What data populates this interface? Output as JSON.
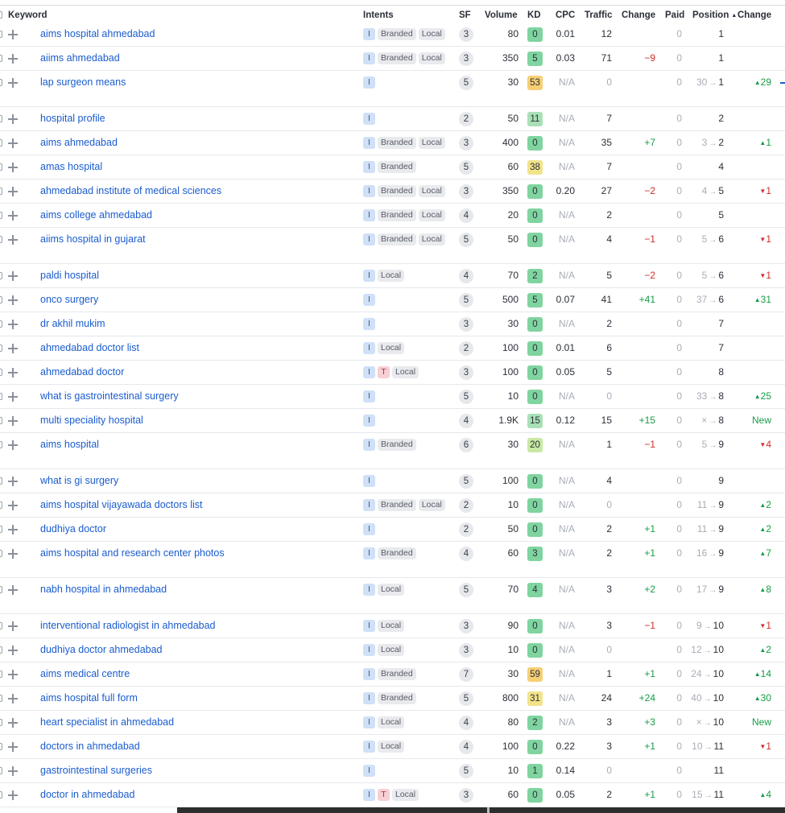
{
  "header": {
    "keyword": "Keyword",
    "intents": "Intents",
    "sf": "SF",
    "volume": "Volume",
    "kd": "KD",
    "cpc": "CPC",
    "traffic": "Traffic",
    "change": "Change",
    "paid": "Paid",
    "position": "Position",
    "position_sort_icon": "sort-ascending-icon",
    "change2": "Change"
  },
  "kd_colors": {
    "green": "#7fd49f",
    "light_green": "#a9e0b6",
    "lime": "#c9e8a4",
    "yellow": "#f2e38a",
    "orange": "#f6cf74"
  },
  "rows": [
    {
      "keyword": "aims hospital ahmedabad",
      "intents": [
        "I"
      ],
      "tags": [
        "Branded",
        "Local"
      ],
      "sf": "3",
      "volume": "80",
      "kd": "0",
      "kd_color": "green",
      "cpc": "0.01",
      "traffic": "12",
      "change": "",
      "paid": "0",
      "pos_prev": "",
      "pos": "1",
      "pos_change": "",
      "pos_dir": ""
    },
    {
      "keyword": "aiims ahmedabad",
      "intents": [
        "I"
      ],
      "tags": [
        "Branded",
        "Local"
      ],
      "sf": "3",
      "volume": "350",
      "kd": "5",
      "kd_color": "green",
      "cpc": "0.03",
      "traffic": "71",
      "change": "−9",
      "paid": "0",
      "pos_prev": "",
      "pos": "1",
      "pos_change": "",
      "pos_dir": ""
    },
    {
      "keyword": "lap surgeon means",
      "intents": [
        "I"
      ],
      "tags": [],
      "sf": "5",
      "volume": "30",
      "kd": "53",
      "kd_color": "orange",
      "cpc": "N/A",
      "traffic": "0",
      "change": "",
      "paid": "0",
      "pos_prev": "30",
      "pos": "1",
      "pos_change": "29",
      "pos_dir": "up"
    },
    {
      "keyword": "hospital profile",
      "intents": [
        "I"
      ],
      "tags": [],
      "sf": "2",
      "volume": "50",
      "kd": "11",
      "kd_color": "light_green",
      "cpc": "N/A",
      "traffic": "7",
      "change": "",
      "paid": "0",
      "pos_prev": "",
      "pos": "2",
      "pos_change": "",
      "pos_dir": ""
    },
    {
      "keyword": "aims ahmedabad",
      "intents": [
        "I"
      ],
      "tags": [
        "Branded",
        "Local"
      ],
      "sf": "3",
      "volume": "400",
      "kd": "0",
      "kd_color": "green",
      "cpc": "N/A",
      "traffic": "35",
      "change": "+7",
      "paid": "0",
      "pos_prev": "3",
      "pos": "2",
      "pos_change": "1",
      "pos_dir": "up"
    },
    {
      "keyword": "amas hospital",
      "intents": [
        "I"
      ],
      "tags": [
        "Branded"
      ],
      "sf": "5",
      "volume": "60",
      "kd": "38",
      "kd_color": "yellow",
      "cpc": "N/A",
      "traffic": "7",
      "change": "",
      "paid": "0",
      "pos_prev": "",
      "pos": "4",
      "pos_change": "",
      "pos_dir": ""
    },
    {
      "keyword": "ahmedabad institute of medical sciences",
      "intents": [
        "I"
      ],
      "tags": [
        "Branded",
        "Local"
      ],
      "sf": "3",
      "volume": "350",
      "kd": "0",
      "kd_color": "green",
      "cpc": "0.20",
      "traffic": "27",
      "change": "−2",
      "paid": "0",
      "pos_prev": "4",
      "pos": "5",
      "pos_change": "1",
      "pos_dir": "down"
    },
    {
      "keyword": "aims college ahmedabad",
      "intents": [
        "I"
      ],
      "tags": [
        "Branded",
        "Local"
      ],
      "sf": "4",
      "volume": "20",
      "kd": "0",
      "kd_color": "green",
      "cpc": "N/A",
      "traffic": "2",
      "change": "",
      "paid": "0",
      "pos_prev": "",
      "pos": "5",
      "pos_change": "",
      "pos_dir": ""
    },
    {
      "keyword": "aiims hospital in gujarat",
      "intents": [
        "I"
      ],
      "tags": [
        "Branded",
        "Local"
      ],
      "sf": "5",
      "volume": "50",
      "kd": "0",
      "kd_color": "green",
      "cpc": "N/A",
      "traffic": "4",
      "change": "−1",
      "paid": "0",
      "pos_prev": "5",
      "pos": "6",
      "pos_change": "1",
      "pos_dir": "down"
    },
    {
      "keyword": "paldi hospital",
      "intents": [
        "I"
      ],
      "tags": [
        "Local"
      ],
      "sf": "4",
      "volume": "70",
      "kd": "2",
      "kd_color": "green",
      "cpc": "N/A",
      "traffic": "5",
      "change": "−2",
      "paid": "0",
      "pos_prev": "5",
      "pos": "6",
      "pos_change": "1",
      "pos_dir": "down"
    },
    {
      "keyword": "onco surgery",
      "intents": [
        "I"
      ],
      "tags": [],
      "sf": "5",
      "volume": "500",
      "kd": "5",
      "kd_color": "green",
      "cpc": "0.07",
      "traffic": "41",
      "change": "+41",
      "paid": "0",
      "pos_prev": "37",
      "pos": "6",
      "pos_change": "31",
      "pos_dir": "up"
    },
    {
      "keyword": "dr akhil mukim",
      "intents": [
        "I"
      ],
      "tags": [],
      "sf": "3",
      "volume": "30",
      "kd": "0",
      "kd_color": "green",
      "cpc": "N/A",
      "traffic": "2",
      "change": "",
      "paid": "0",
      "pos_prev": "",
      "pos": "7",
      "pos_change": "",
      "pos_dir": ""
    },
    {
      "keyword": "ahmedabad doctor list",
      "intents": [
        "I"
      ],
      "tags": [
        "Local"
      ],
      "sf": "2",
      "volume": "100",
      "kd": "0",
      "kd_color": "green",
      "cpc": "0.01",
      "traffic": "6",
      "change": "",
      "paid": "0",
      "pos_prev": "",
      "pos": "7",
      "pos_change": "",
      "pos_dir": ""
    },
    {
      "keyword": "ahmedabad doctor",
      "intents": [
        "I",
        "T"
      ],
      "tags": [
        "Local"
      ],
      "sf": "3",
      "volume": "100",
      "kd": "0",
      "kd_color": "green",
      "cpc": "0.05",
      "traffic": "5",
      "change": "",
      "paid": "0",
      "pos_prev": "",
      "pos": "8",
      "pos_change": "",
      "pos_dir": ""
    },
    {
      "keyword": "what is gastrointestinal surgery",
      "intents": [
        "I"
      ],
      "tags": [],
      "sf": "5",
      "volume": "10",
      "kd": "0",
      "kd_color": "green",
      "cpc": "N/A",
      "traffic": "0",
      "change": "",
      "paid": "0",
      "pos_prev": "33",
      "pos": "8",
      "pos_change": "25",
      "pos_dir": "up"
    },
    {
      "keyword": "multi speciality hospital",
      "intents": [
        "I"
      ],
      "tags": [],
      "sf": "4",
      "volume": "1.9K",
      "kd": "15",
      "kd_color": "light_green",
      "cpc": "0.12",
      "traffic": "15",
      "change": "+15",
      "paid": "0",
      "pos_prev": "×",
      "pos": "8",
      "pos_change": "New",
      "pos_dir": "new"
    },
    {
      "keyword": "aims hospital",
      "intents": [
        "I"
      ],
      "tags": [
        "Branded"
      ],
      "sf": "6",
      "volume": "30",
      "kd": "20",
      "kd_color": "lime",
      "cpc": "N/A",
      "traffic": "1",
      "change": "−1",
      "paid": "0",
      "pos_prev": "5",
      "pos": "9",
      "pos_change": "4",
      "pos_dir": "down"
    },
    {
      "keyword": "what is gi surgery",
      "intents": [
        "I"
      ],
      "tags": [],
      "sf": "5",
      "volume": "100",
      "kd": "0",
      "kd_color": "green",
      "cpc": "N/A",
      "traffic": "4",
      "change": "",
      "paid": "0",
      "pos_prev": "",
      "pos": "9",
      "pos_change": "",
      "pos_dir": ""
    },
    {
      "keyword": "aims hospital vijayawada doctors list",
      "intents": [
        "I"
      ],
      "tags": [
        "Branded",
        "Local"
      ],
      "sf": "2",
      "volume": "10",
      "kd": "0",
      "kd_color": "green",
      "cpc": "N/A",
      "traffic": "0",
      "change": "",
      "paid": "0",
      "pos_prev": "11",
      "pos": "9",
      "pos_change": "2",
      "pos_dir": "up"
    },
    {
      "keyword": "dudhiya doctor",
      "intents": [
        "I"
      ],
      "tags": [],
      "sf": "2",
      "volume": "50",
      "kd": "0",
      "kd_color": "green",
      "cpc": "N/A",
      "traffic": "2",
      "change": "+1",
      "paid": "0",
      "pos_prev": "11",
      "pos": "9",
      "pos_change": "2",
      "pos_dir": "up"
    },
    {
      "keyword": "aims hospital and research center photos",
      "intents": [
        "I"
      ],
      "tags": [
        "Branded"
      ],
      "sf": "4",
      "volume": "60",
      "kd": "3",
      "kd_color": "green",
      "cpc": "N/A",
      "traffic": "2",
      "change": "+1",
      "paid": "0",
      "pos_prev": "16",
      "pos": "9",
      "pos_change": "7",
      "pos_dir": "up"
    },
    {
      "keyword": "nabh hospital in ahmedabad",
      "intents": [
        "I"
      ],
      "tags": [
        "Local"
      ],
      "sf": "5",
      "volume": "70",
      "kd": "4",
      "kd_color": "green",
      "cpc": "N/A",
      "traffic": "3",
      "change": "+2",
      "paid": "0",
      "pos_prev": "17",
      "pos": "9",
      "pos_change": "8",
      "pos_dir": "up"
    },
    {
      "keyword": "interventional radiologist in ahmedabad",
      "intents": [
        "I"
      ],
      "tags": [
        "Local"
      ],
      "sf": "3",
      "volume": "90",
      "kd": "0",
      "kd_color": "green",
      "cpc": "N/A",
      "traffic": "3",
      "change": "−1",
      "paid": "0",
      "pos_prev": "9",
      "pos": "10",
      "pos_change": "1",
      "pos_dir": "down"
    },
    {
      "keyword": "dudhiya doctor ahmedabad",
      "intents": [
        "I"
      ],
      "tags": [
        "Local"
      ],
      "sf": "3",
      "volume": "10",
      "kd": "0",
      "kd_color": "green",
      "cpc": "N/A",
      "traffic": "0",
      "change": "",
      "paid": "0",
      "pos_prev": "12",
      "pos": "10",
      "pos_change": "2",
      "pos_dir": "up"
    },
    {
      "keyword": "aims medical centre",
      "intents": [
        "I"
      ],
      "tags": [
        "Branded"
      ],
      "sf": "7",
      "volume": "30",
      "kd": "59",
      "kd_color": "orange",
      "cpc": "N/A",
      "traffic": "1",
      "change": "+1",
      "paid": "0",
      "pos_prev": "24",
      "pos": "10",
      "pos_change": "14",
      "pos_dir": "up"
    },
    {
      "keyword": "aims hospital full form",
      "intents": [
        "I"
      ],
      "tags": [
        "Branded"
      ],
      "sf": "5",
      "volume": "800",
      "kd": "31",
      "kd_color": "yellow",
      "cpc": "N/A",
      "traffic": "24",
      "change": "+24",
      "paid": "0",
      "pos_prev": "40",
      "pos": "10",
      "pos_change": "30",
      "pos_dir": "up"
    },
    {
      "keyword": "heart specialist in ahmedabad",
      "intents": [
        "I"
      ],
      "tags": [
        "Local"
      ],
      "sf": "4",
      "volume": "80",
      "kd": "2",
      "kd_color": "green",
      "cpc": "N/A",
      "traffic": "3",
      "change": "+3",
      "paid": "0",
      "pos_prev": "×",
      "pos": "10",
      "pos_change": "New",
      "pos_dir": "new"
    },
    {
      "keyword": "doctors in ahmedabad",
      "intents": [
        "I"
      ],
      "tags": [
        "Local"
      ],
      "sf": "4",
      "volume": "100",
      "kd": "0",
      "kd_color": "green",
      "cpc": "0.22",
      "traffic": "3",
      "change": "+1",
      "paid": "0",
      "pos_prev": "10",
      "pos": "11",
      "pos_change": "1",
      "pos_dir": "down"
    },
    {
      "keyword": "gastrointestinal surgeries",
      "intents": [
        "I"
      ],
      "tags": [],
      "sf": "5",
      "volume": "10",
      "kd": "1",
      "kd_color": "green",
      "cpc": "0.14",
      "traffic": "0",
      "change": "",
      "paid": "0",
      "pos_prev": "",
      "pos": "11",
      "pos_change": "",
      "pos_dir": ""
    },
    {
      "keyword": "doctor in ahmedabad",
      "intents": [
        "I",
        "T"
      ],
      "tags": [
        "Local"
      ],
      "sf": "3",
      "volume": "60",
      "kd": "0",
      "kd_color": "green",
      "cpc": "0.05",
      "traffic": "2",
      "change": "+1",
      "paid": "0",
      "pos_prev": "15",
      "pos": "11",
      "pos_change": "4",
      "pos_dir": "up"
    }
  ]
}
